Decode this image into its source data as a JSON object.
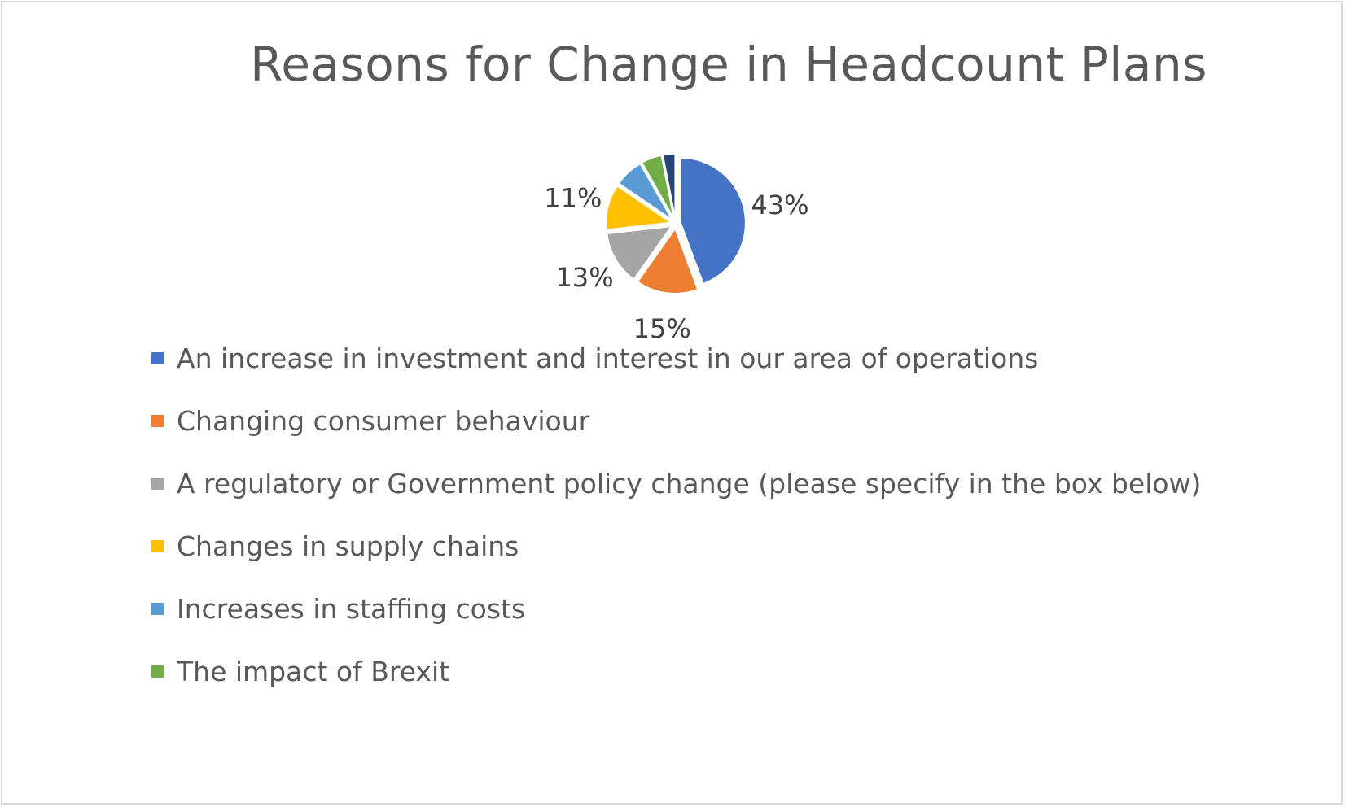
{
  "chart_data": {
    "type": "pie",
    "title": "Reasons for Change in Headcount Plans",
    "categories": [
      "An increase in investment and interest in our area of operations",
      "Changing consumer behaviour",
      "A regulatory or Government policy change (please specify in the box below)",
      "Changes in supply chains",
      "Increases in staffing costs",
      "The impact of Brexit",
      ""
    ],
    "values": [
      43,
      15,
      13,
      11,
      7,
      5,
      3
    ],
    "data_labels": [
      "43%",
      "15%",
      "13%",
      "11%",
      "",
      "",
      ""
    ],
    "colors": [
      "#4472c4",
      "#ed7d31",
      "#a5a5a5",
      "#ffc000",
      "#5b9bd5",
      "#70ad47",
      "#264478"
    ],
    "legend_position": "bottom",
    "legend_entries_visible": 6
  }
}
